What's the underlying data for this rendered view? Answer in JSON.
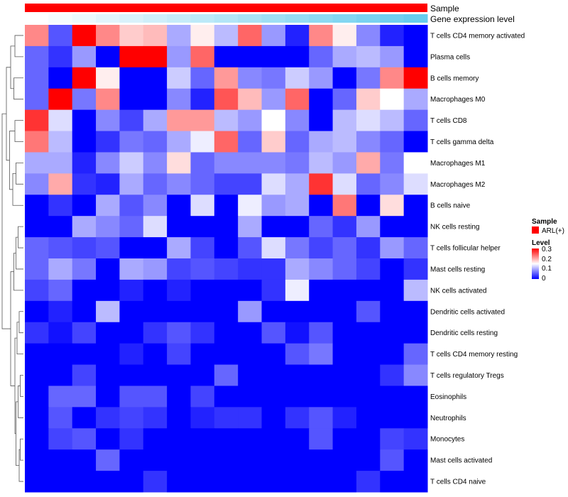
{
  "chart_data": {
    "type": "heatmap",
    "annotations": {
      "sample_label": "Sample",
      "expression_label": "Gene expression level",
      "sample_color": "#ff0000",
      "expression_gradient": [
        "#ffffff",
        "#66ccee"
      ]
    },
    "rows": [
      "T cells CD4 memory activated",
      "Plasma cells",
      "B cells memory",
      "Macrophages M0",
      "T cells CD8",
      "T cells gamma delta",
      "Macrophages M1",
      "Macrophages M2",
      "B cells naive",
      "NK cells resting",
      "T cells follicular helper",
      "Mast cells resting",
      "NK cells activated",
      "Dendritic cells activated",
      "Dendritic cells resting",
      "T cells CD4 memory resting",
      "T cells regulatory  Tregs",
      "Eosinophils",
      "Neutrophils",
      "Monocytes",
      "Mast cells activated",
      "T cells CD4 naive"
    ],
    "values": [
      [
        0.22,
        0.05,
        0.3,
        0.22,
        0.18,
        0.19,
        0.1,
        0.16,
        0.11,
        0.24,
        0.09,
        0.02,
        0.22,
        0.16,
        0.08,
        0.02,
        0.0
      ],
      [
        0.06,
        0.03,
        0.09,
        0.0,
        0.3,
        0.3,
        0.09,
        0.24,
        0.0,
        0.0,
        0.0,
        0.0,
        0.06,
        0.1,
        0.11,
        0.09,
        0.0
      ],
      [
        0.06,
        0.0,
        0.3,
        0.16,
        0.0,
        0.0,
        0.12,
        0.06,
        0.21,
        0.08,
        0.07,
        0.12,
        0.09,
        0.0,
        0.07,
        0.22,
        0.3
      ],
      [
        0.06,
        0.3,
        0.07,
        0.22,
        0.0,
        0.0,
        0.08,
        0.02,
        0.25,
        0.19,
        0.09,
        0.24,
        0.0,
        0.06,
        0.18,
        0.15,
        0.1
      ],
      [
        0.27,
        0.13,
        0.0,
        0.08,
        0.04,
        0.1,
        0.21,
        0.21,
        0.11,
        0.09,
        0.15,
        0.08,
        0.0,
        0.11,
        0.13,
        0.11,
        0.06
      ],
      [
        0.23,
        0.11,
        0.0,
        0.03,
        0.07,
        0.06,
        0.1,
        0.14,
        0.24,
        0.06,
        0.18,
        0.06,
        0.1,
        0.11,
        0.08,
        0.06,
        0.0
      ],
      [
        0.1,
        0.1,
        0.02,
        0.08,
        0.12,
        0.08,
        0.17,
        0.06,
        0.08,
        0.08,
        0.08,
        0.07,
        0.11,
        0.09,
        0.2,
        0.07,
        0.15
      ],
      [
        0.08,
        0.2,
        0.03,
        0.02,
        0.1,
        0.06,
        0.08,
        0.06,
        0.04,
        0.04,
        0.13,
        0.1,
        0.27,
        0.13,
        0.06,
        0.08,
        0.13
      ],
      [
        0.0,
        0.03,
        0.0,
        0.1,
        0.05,
        0.08,
        0.0,
        0.13,
        0.0,
        0.14,
        0.09,
        0.1,
        0.0,
        0.23,
        0.0,
        0.17,
        0.0
      ],
      [
        0.0,
        0.0,
        0.1,
        0.08,
        0.06,
        0.13,
        0.0,
        0.0,
        0.0,
        0.1,
        0.0,
        0.0,
        0.06,
        0.03,
        0.09,
        0.0,
        0.0
      ],
      [
        0.06,
        0.05,
        0.04,
        0.05,
        0.0,
        0.0,
        0.1,
        0.04,
        0.0,
        0.05,
        0.13,
        0.07,
        0.04,
        0.06,
        0.03,
        0.09,
        0.06
      ],
      [
        0.06,
        0.1,
        0.07,
        0.0,
        0.1,
        0.09,
        0.04,
        0.05,
        0.04,
        0.03,
        0.03,
        0.1,
        0.08,
        0.06,
        0.04,
        0.0,
        0.03
      ],
      [
        0.04,
        0.06,
        0.0,
        0.0,
        0.02,
        0.0,
        0.02,
        0.0,
        0.0,
        0.0,
        0.03,
        0.14,
        0.0,
        0.0,
        0.0,
        0.0,
        0.11
      ],
      [
        0.0,
        0.02,
        0.0,
        0.11,
        0.0,
        0.0,
        0.0,
        0.0,
        0.0,
        0.09,
        0.0,
        0.0,
        0.0,
        0.0,
        0.05,
        0.0,
        0.0
      ],
      [
        0.03,
        0.01,
        0.04,
        0.0,
        0.0,
        0.03,
        0.05,
        0.03,
        0.0,
        0.0,
        0.05,
        0.01,
        0.05,
        0.0,
        0.0,
        0.0,
        0.0
      ],
      [
        0.0,
        0.0,
        0.0,
        0.0,
        0.02,
        0.0,
        0.04,
        0.0,
        0.0,
        0.0,
        0.0,
        0.05,
        0.07,
        0.0,
        0.0,
        0.0,
        0.06
      ],
      [
        0.0,
        0.0,
        0.04,
        0.0,
        0.0,
        0.0,
        0.0,
        0.0,
        0.06,
        0.0,
        0.0,
        0.0,
        0.0,
        0.0,
        0.0,
        0.03,
        0.08
      ],
      [
        0.0,
        0.06,
        0.06,
        0.0,
        0.05,
        0.05,
        0.0,
        0.04,
        0.0,
        0.0,
        0.0,
        0.0,
        0.0,
        0.0,
        0.0,
        0.0,
        0.0
      ],
      [
        0.0,
        0.05,
        0.0,
        0.03,
        0.04,
        0.03,
        0.0,
        0.02,
        0.03,
        0.03,
        0.0,
        0.03,
        0.05,
        0.02,
        0.0,
        0.0,
        0.0
      ],
      [
        0.0,
        0.04,
        0.05,
        0.0,
        0.03,
        0.0,
        0.0,
        0.0,
        0.0,
        0.0,
        0.0,
        0.0,
        0.05,
        0.0,
        0.0,
        0.04,
        0.03
      ],
      [
        0.0,
        0.0,
        0.0,
        0.06,
        0.0,
        0.0,
        0.0,
        0.0,
        0.0,
        0.0,
        0.0,
        0.0,
        0.0,
        0.0,
        0.0,
        0.05,
        0.0
      ],
      [
        0.0,
        0.0,
        0.0,
        0.0,
        0.0,
        0.03,
        0.0,
        0.0,
        0.0,
        0.0,
        0.0,
        0.0,
        0.0,
        0.0,
        0.03,
        0.0,
        0.0
      ]
    ],
    "color_scale": {
      "min": 0,
      "mid": 0.15,
      "max": 0.3,
      "colors": [
        "#0000ff",
        "#ffffff",
        "#ff0000"
      ]
    },
    "legend": {
      "sample_title": "Sample",
      "sample_entries": [
        {
          "label": "ARL(+)",
          "color": "#ff0000"
        }
      ],
      "level_title": "Level",
      "level_ticks": [
        "0.3",
        "0.2",
        "0.1",
        "0"
      ]
    }
  }
}
